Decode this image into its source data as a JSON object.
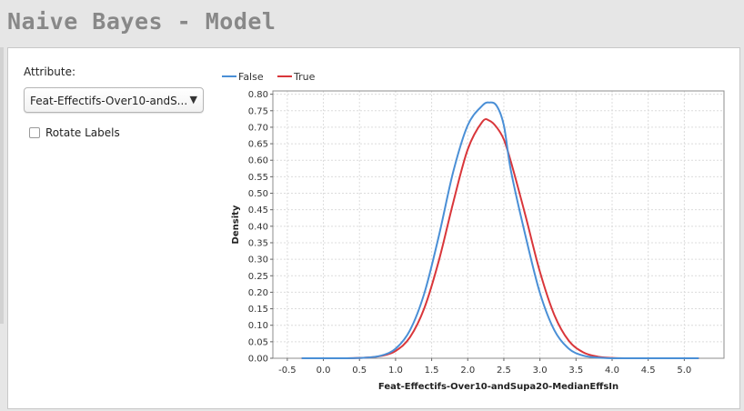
{
  "window": {
    "title": "Naive Bayes - Model"
  },
  "controls": {
    "attribute_label": "Attribute:",
    "attribute_value": "Feat-Effectifs-Over10-andS...",
    "dropdown_arrow": "▼",
    "rotate_labels_label": "Rotate Labels",
    "rotate_labels_checked": false
  },
  "chart_data": {
    "type": "line",
    "xlabel": "Feat-Effectifs-Over10-andSupa20-MedianEffsIn",
    "ylabel": "Density",
    "xlim": [
      -0.7,
      5.55
    ],
    "ylim": [
      0,
      0.81
    ],
    "xticks": [
      -0.5,
      0.0,
      0.5,
      1.0,
      1.5,
      2.0,
      2.5,
      3.0,
      3.5,
      4.0,
      4.5,
      5.0
    ],
    "xtick_labels": [
      "-0.5",
      "0.0",
      "0.5",
      "1.0",
      "1.5",
      "2.0",
      "2.5",
      "3.0",
      "3.5",
      "4.0",
      "4.5",
      "5.0"
    ],
    "yticks": [
      0.0,
      0.05,
      0.1,
      0.15,
      0.2,
      0.25,
      0.3,
      0.35,
      0.4,
      0.45,
      0.5,
      0.55,
      0.6,
      0.65,
      0.7,
      0.75,
      0.8
    ],
    "ytick_labels": [
      "0.00",
      "0.05",
      "0.10",
      "0.15",
      "0.20",
      "0.25",
      "0.30",
      "0.35",
      "0.40",
      "0.45",
      "0.50",
      "0.55",
      "0.60",
      "0.65",
      "0.70",
      "0.75",
      "0.80"
    ],
    "grid": true,
    "legend_position": "top-left",
    "x": [
      -0.3,
      0.0,
      0.3,
      0.6,
      0.8,
      1.0,
      1.2,
      1.4,
      1.6,
      1.8,
      2.0,
      2.2,
      2.3,
      2.4,
      2.5,
      2.6,
      2.8,
      3.0,
      3.2,
      3.4,
      3.6,
      3.8,
      4.0,
      4.2,
      4.5,
      5.2
    ],
    "series": [
      {
        "name": "False",
        "color": "#4a8fd6",
        "values": [
          0.0,
          0.0,
          0.0,
          0.002,
          0.008,
          0.029,
          0.085,
          0.198,
          0.371,
          0.566,
          0.706,
          0.765,
          0.775,
          0.765,
          0.706,
          0.566,
          0.371,
          0.198,
          0.085,
          0.029,
          0.008,
          0.002,
          0.0,
          0.0,
          0.0,
          0.0
        ]
      },
      {
        "name": "True",
        "color": "#d9363a",
        "values": [
          0.0,
          0.0,
          0.0,
          0.002,
          0.007,
          0.022,
          0.064,
          0.153,
          0.296,
          0.473,
          0.633,
          0.716,
          0.72,
          0.7,
          0.663,
          0.594,
          0.432,
          0.262,
          0.131,
          0.053,
          0.018,
          0.005,
          0.001,
          0.0,
          0.0,
          0.0
        ]
      }
    ]
  }
}
